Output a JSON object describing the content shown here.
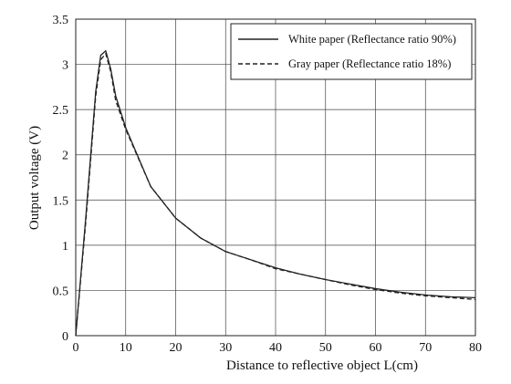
{
  "chart_data": {
    "type": "line",
    "xlabel": "Distance to reflective object L(cm)",
    "ylabel": "Output voltage (V)",
    "xlim": [
      0,
      80
    ],
    "ylim": [
      0,
      3.5
    ],
    "x_ticks": [
      "0",
      "10",
      "20",
      "30",
      "40",
      "50",
      "60",
      "70",
      "80"
    ],
    "y_ticks": [
      "0",
      "0.5",
      "1",
      "1.5",
      "2",
      "2.5",
      "3",
      "3.5"
    ],
    "grid": true,
    "legend_position": "top-right",
    "series": [
      {
        "name": "White paper (Reflectance ratio 90%)",
        "style": "solid",
        "color": "#222222",
        "x": [
          0,
          2,
          4,
          5,
          6,
          7,
          8,
          10,
          15,
          20,
          25,
          30,
          35,
          40,
          45,
          50,
          55,
          60,
          65,
          70,
          75,
          80
        ],
        "y": [
          0,
          1.3,
          2.7,
          3.1,
          3.15,
          2.95,
          2.65,
          2.3,
          1.65,
          1.3,
          1.08,
          0.93,
          0.84,
          0.75,
          0.68,
          0.62,
          0.57,
          0.52,
          0.48,
          0.45,
          0.43,
          0.42
        ]
      },
      {
        "name": "Gray paper (Reflectance ratio 18%)",
        "style": "dashed",
        "color": "#222222",
        "x": [
          0,
          2,
          4,
          5,
          6,
          7,
          8,
          10,
          15,
          20,
          25,
          30,
          35,
          40,
          45,
          50,
          55,
          60,
          65,
          70,
          75,
          80
        ],
        "y": [
          0,
          1.25,
          2.65,
          3.05,
          3.12,
          2.92,
          2.6,
          2.28,
          1.65,
          1.3,
          1.08,
          0.93,
          0.84,
          0.74,
          0.68,
          0.62,
          0.56,
          0.51,
          0.47,
          0.44,
          0.42,
          0.4
        ]
      }
    ]
  }
}
